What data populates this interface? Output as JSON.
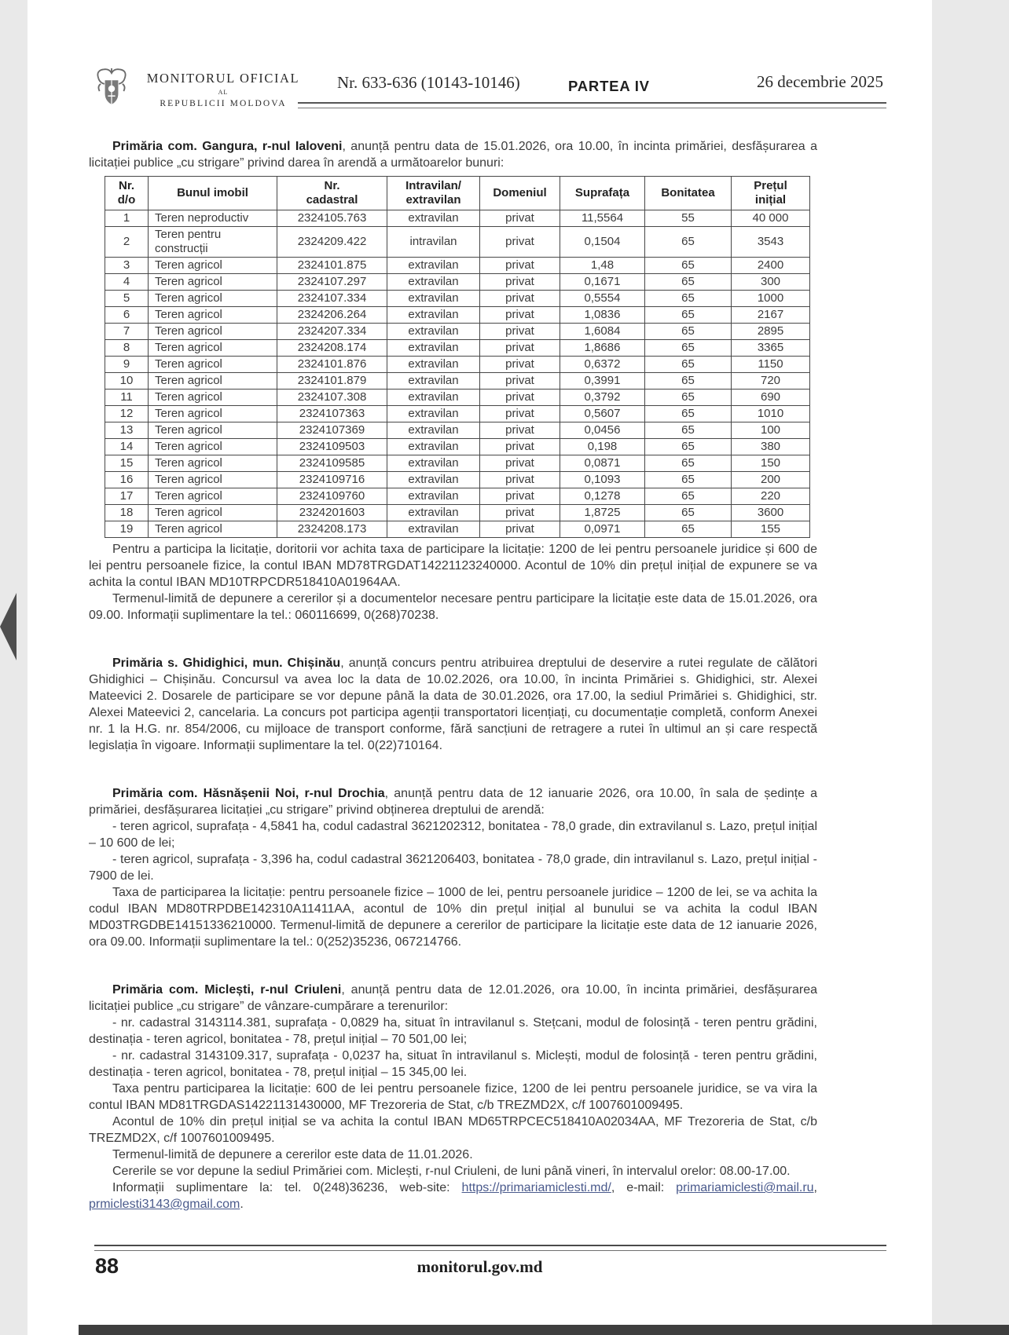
{
  "colors": {
    "viewer_bg": "#e9e9e9",
    "bottom_bar": "#3e3e3e",
    "link": "#4a5a8c"
  },
  "header": {
    "masthead_title": "MONITORUL OFICIAL",
    "masthead_al": "AL",
    "masthead_subtitle": "REPUBLICII MOLDOVA",
    "issue": "Nr. 633-636 (10143-10146)",
    "part": "PARTEA IV",
    "date": "26 decembrie 2025"
  },
  "nav": {
    "left_icon": "triangle-left",
    "right_icon": "triangle-right"
  },
  "sections": {
    "gangura": {
      "lead": "Primăria com. Gangura, r-nul Ialoveni",
      "intro": ", anunță pentru data de 15.01.2026, ora 10.00, în incinta primăriei, desfășurarea a licitației publice „cu strigare” privind darea în arendă a următoarelor bunuri:",
      "table": {
        "headers": [
          "Nr.\nd/o",
          "Bunul imobil",
          "Nr.\ncadastral",
          "Intravilan/\nextravilan",
          "Domeniul",
          "Suprafața",
          "Bonitatea",
          "Prețul\ninițial"
        ],
        "rows": [
          [
            "1",
            "Teren neproductiv",
            "2324105.763",
            "extravilan",
            "privat",
            "11,5564",
            "55",
            "40 000"
          ],
          [
            "2",
            "Teren pentru construcții",
            "2324209.422",
            "intravilan",
            "privat",
            "0,1504",
            "65",
            "3543"
          ],
          [
            "3",
            "Teren agricol",
            "2324101.875",
            "extravilan",
            "privat",
            "1,48",
            "65",
            "2400"
          ],
          [
            "4",
            "Teren agricol",
            "2324107.297",
            "extravilan",
            "privat",
            "0,1671",
            "65",
            "300"
          ],
          [
            "5",
            "Teren agricol",
            "2324107.334",
            "extravilan",
            "privat",
            "0,5554",
            "65",
            "1000"
          ],
          [
            "6",
            "Teren agricol",
            "2324206.264",
            "extravilan",
            "privat",
            "1,0836",
            "65",
            "2167"
          ],
          [
            "7",
            "Teren agricol",
            "2324207.334",
            "extravilan",
            "privat",
            "1,6084",
            "65",
            "2895"
          ],
          [
            "8",
            "Teren agricol",
            "2324208.174",
            "extravilan",
            "privat",
            "1,8686",
            "65",
            "3365"
          ],
          [
            "9",
            "Teren agricol",
            "2324101.876",
            "extravilan",
            "privat",
            "0,6372",
            "65",
            "1150"
          ],
          [
            "10",
            "Teren agricol",
            "2324101.879",
            "extravilan",
            "privat",
            "0,3991",
            "65",
            "720"
          ],
          [
            "11",
            "Teren agricol",
            "2324107.308",
            "extravilan",
            "privat",
            "0,3792",
            "65",
            "690"
          ],
          [
            "12",
            "Teren agricol",
            "2324107363",
            "extravilan",
            "privat",
            "0,5607",
            "65",
            "1010"
          ],
          [
            "13",
            "Teren agricol",
            "2324107369",
            "extravilan",
            "privat",
            "0,0456",
            "65",
            "100"
          ],
          [
            "14",
            "Teren agricol",
            "2324109503",
            "extravilan",
            "privat",
            "0,198",
            "65",
            "380"
          ],
          [
            "15",
            "Teren agricol",
            "2324109585",
            "extravilan",
            "privat",
            "0,0871",
            "65",
            "150"
          ],
          [
            "16",
            "Teren agricol",
            "2324109716",
            "extravilan",
            "privat",
            "0,1093",
            "65",
            "200"
          ],
          [
            "17",
            "Teren agricol",
            "2324109760",
            "extravilan",
            "privat",
            "0,1278",
            "65",
            "220"
          ],
          [
            "18",
            "Teren agricol",
            "2324201603",
            "extravilan",
            "privat",
            "1,8725",
            "65",
            "3600"
          ],
          [
            "19",
            "Teren agricol",
            "2324208.173",
            "extravilan",
            "privat",
            "0,0971",
            "65",
            "155"
          ]
        ]
      },
      "p1": "Pentru a participa la licitație, doritorii vor achita taxa de participare la licitație: 1200 de lei pentru persoanele juridice și 600 de lei pentru persoanele fizice, la contul IBAN MD78TRGDAT14221123240000. Acontul de 10% din prețul inițial de expunere se va achita la contul IBAN MD10TRPCDR518410A01964AA.",
      "p2": "Termenul-limită de depunere a cererilor și a documentelor necesare pentru participare la licitație este data de 15.01.2026, ora 09.00. Informații suplimentare la tel.: 060116699, 0(268)70238."
    },
    "ghidighici": {
      "lead": "Primăria s. Ghidighici, mun. Chișinău",
      "body": ", anunță concurs pentru atribuirea dreptului de deservire a rutei regulate de călători Ghidighici – Chișinău. Concursul va avea loc la data de 10.02.2026, ora 10.00, în incinta Primăriei s. Ghidighici, str. Alexei Mateevici 2. Dosarele de participare se vor depune până la data de 30.01.2026, ora 17.00, la sediul Primăriei s. Ghidighici, str. Alexei Mateevici 2, cancelaria. La concurs pot participa agenții transportatori licențiați, cu documentație completă, conform Anexei nr. 1 la H.G. nr. 854/2006, cu mijloace de transport conforme, fără sancțiuni de retragere a rutei în ultimul an și care respectă legislația în vigoare. Informații suplimentare la tel. 0(22)710164."
    },
    "hasnasenii": {
      "lead": "Primăria com. Hăsnășenii Noi, r-nul Drochia",
      "intro": ", anunță pentru data de 12 ianuarie 2026, ora 10.00, în sala de ședințe a primăriei, desfășurarea licitației „cu strigare” privind obținerea dreptului de arendă:",
      "item1": "- teren agricol, suprafața - 4,5841 ha, codul cadastral 3621202312, bonitatea - 78,0 grade, din extravilanul s. Lazo, prețul inițial – 10 600 de lei;",
      "item2": "- teren agricol, suprafața - 3,396 ha, codul cadastral 3621206403, bonitatea - 78,0 grade, din intravilanul s. Lazo, prețul inițial - 7900 de lei.",
      "p1": "Taxa de participarea la licitație: pentru persoanele fizice – 1000 de lei, pentru persoanele juridice – 1200 de lei, se va achita la codul IBAN MD80TRPDBE142310A11411AA, acontul de 10% din prețul inițial al bunului se va achita la codul IBAN MD03TRGDBE14151336210000. Termenul-limită de depunere a cererilor de participare la licitație este data de 12 ianuarie 2026, ora 09.00. Informații suplimentare la tel.: 0(252)35236, 067214766."
    },
    "miclesti": {
      "lead": "Primăria com. Miclești, r-nul Criuleni",
      "intro": ", anunță pentru data de 12.01.2026, ora 10.00, în incinta primăriei, desfășurarea licitației publice „cu strigare” de vânzare-cumpărare a terenurilor:",
      "item1": "- nr. cadastral 3143114.381, suprafața - 0,0829 ha, situat în intravilanul s. Stețcani, modul de folosință - teren pentru grădini, destinația - teren agricol, bonitatea - 78, prețul inițial – 70 501,00 lei;",
      "item2": "- nr. cadastral 3143109.317, suprafața - 0,0237 ha, situat în intravilanul s. Miclești, modul de folosință - teren pentru grădini, destinația - teren agricol, bonitatea - 78, prețul inițial – 15 345,00 lei.",
      "p1": "Taxa pentru participarea la licitație: 600 de lei pentru persoanele fizice, 1200 de lei pentru persoanele juridice, se va vira la contul IBAN MD81TRGDAS14221131430000, MF Trezoreria de Stat, c/b TREZMD2X, c/f 1007601009495.",
      "p2": "Acontul de 10% din prețul inițial se va achita la contul IBAN MD65TRPCEC518410A02034AA, MF Trezoreria de Stat, c/b TREZMD2X, c/f 1007601009495.",
      "p3": "Termenul-limită de depunere a cererilor este data de 11.01.2026.",
      "p4": "Cererile se vor depune la sediul Primăriei com. Miclești, r-nul Criuleni, de luni până vineri, în intervalul orelor: 08.00-17.00.",
      "p5_pre": "Informații suplimentare la: tel. 0(248)36236, web-site: ",
      "p5_link1": "https://primariamiclesti.md/",
      "p5_mid1": ", e-mail: ",
      "p5_link2": "primariamiclesti@mail.ru",
      "p5_mid2": ", ",
      "p5_link3": "prmiclesti3143@gmail.com",
      "p5_end": "."
    }
  },
  "footer": {
    "page_number": "88",
    "site": "monitorul.gov.md"
  }
}
